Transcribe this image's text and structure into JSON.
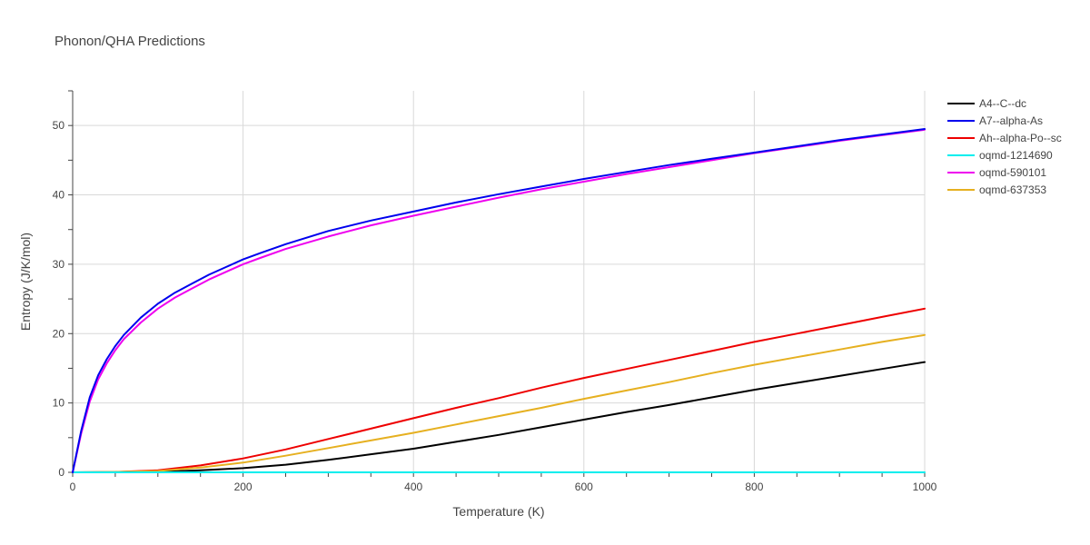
{
  "chart_data": {
    "type": "line",
    "title": "Phonon/QHA Predictions",
    "xlabel": "Temperature (K)",
    "ylabel": "Entropy (J/K/mol)",
    "xlim": [
      0,
      1000
    ],
    "ylim": [
      0,
      55
    ],
    "x_ticks": [
      0,
      200,
      400,
      600,
      800,
      1000
    ],
    "y_ticks": [
      0,
      10,
      20,
      30,
      40,
      50
    ],
    "grid": true,
    "legend_position": "top-right",
    "series": [
      {
        "name": "A4--C--dc",
        "color": "#000000",
        "x": [
          0,
          50,
          100,
          150,
          200,
          250,
          300,
          350,
          400,
          450,
          500,
          550,
          600,
          650,
          700,
          750,
          800,
          850,
          900,
          950,
          1000
        ],
        "y": [
          0,
          0,
          0.05,
          0.3,
          0.6,
          1.1,
          1.8,
          2.6,
          3.4,
          4.4,
          5.4,
          6.5,
          7.6,
          8.7,
          9.7,
          10.8,
          11.9,
          12.9,
          13.9,
          14.9,
          15.9
        ]
      },
      {
        "name": "A7--alpha-As",
        "color": "#0000ee",
        "x": [
          0,
          10,
          20,
          30,
          40,
          50,
          60,
          80,
          100,
          120,
          140,
          160,
          180,
          200,
          220,
          250,
          300,
          350,
          400,
          450,
          500,
          550,
          600,
          650,
          700,
          750,
          800,
          850,
          900,
          950,
          1000
        ],
        "y": [
          0,
          6,
          10.8,
          14,
          16.3,
          18.2,
          19.8,
          22.3,
          24.3,
          25.9,
          27.2,
          28.5,
          29.6,
          30.7,
          31.6,
          32.9,
          34.8,
          36.3,
          37.6,
          38.9,
          40.1,
          41.2,
          42.3,
          43.3,
          44.3,
          45.2,
          46.1,
          47.0,
          47.9,
          48.7,
          49.5
        ]
      },
      {
        "name": "Ah--alpha-Po--sc",
        "color": "#ee0000",
        "x": [
          0,
          50,
          100,
          150,
          200,
          250,
          300,
          350,
          400,
          450,
          500,
          550,
          600,
          650,
          700,
          750,
          800,
          850,
          900,
          950,
          1000
        ],
        "y": [
          0,
          0.05,
          0.3,
          1.0,
          2.0,
          3.3,
          4.8,
          6.3,
          7.8,
          9.3,
          10.7,
          12.2,
          13.6,
          14.9,
          16.2,
          17.5,
          18.8,
          20.0,
          21.2,
          22.4,
          23.6
        ]
      },
      {
        "name": "oqmd-1214690",
        "color": "#00eeee",
        "x": [
          0,
          1000
        ],
        "y": [
          0,
          0
        ]
      },
      {
        "name": "oqmd-590101",
        "color": "#ee00ee",
        "x": [
          0,
          10,
          20,
          30,
          40,
          50,
          60,
          80,
          100,
          120,
          140,
          160,
          180,
          200,
          220,
          250,
          300,
          350,
          400,
          450,
          500,
          550,
          600,
          650,
          700,
          750,
          800,
          850,
          900,
          950,
          1000
        ],
        "y": [
          0,
          5.6,
          10.2,
          13.4,
          15.7,
          17.6,
          19.2,
          21.6,
          23.6,
          25.2,
          26.5,
          27.8,
          28.9,
          30.0,
          30.9,
          32.2,
          34.0,
          35.6,
          37.0,
          38.3,
          39.6,
          40.8,
          41.9,
          43.0,
          44.0,
          45.0,
          46.0,
          46.9,
          47.8,
          48.6,
          49.4
        ]
      },
      {
        "name": "oqmd-637353",
        "color": "#e6b020",
        "x": [
          0,
          50,
          100,
          150,
          200,
          250,
          300,
          350,
          400,
          450,
          500,
          550,
          600,
          650,
          700,
          750,
          800,
          850,
          900,
          950,
          1000
        ],
        "y": [
          0,
          0.05,
          0.2,
          0.7,
          1.4,
          2.4,
          3.5,
          4.6,
          5.7,
          6.9,
          8.1,
          9.3,
          10.6,
          11.8,
          13.0,
          14.3,
          15.5,
          16.6,
          17.7,
          18.8,
          19.8
        ]
      }
    ]
  }
}
